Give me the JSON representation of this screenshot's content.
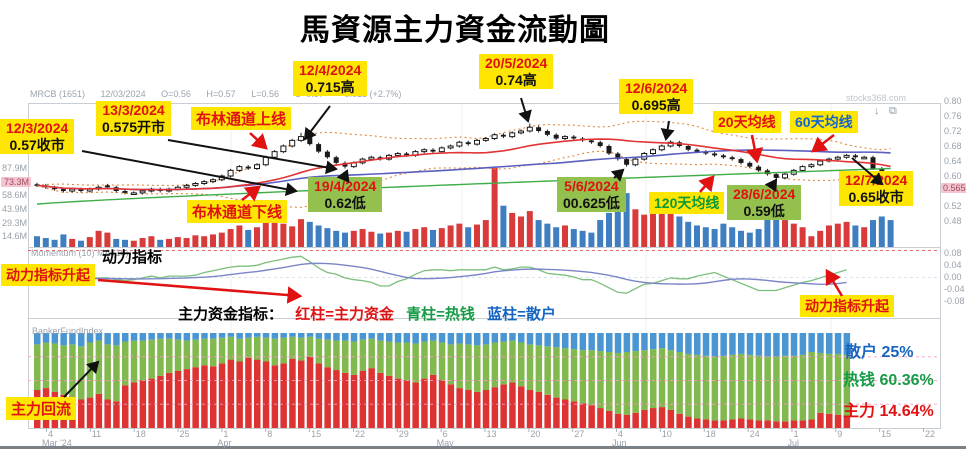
{
  "title": "馬資源主力資金流動圖",
  "watermark": "stocks368.com",
  "toolbar": {
    "download_icon": "↓",
    "expand_icon": "⧉"
  },
  "chart_header": {
    "symbol": "MRCB (1651)",
    "date": "12/03/2024",
    "open": "O=0.56",
    "high": "H=0.57",
    "low": "L=0.56",
    "close": "C=0.57",
    "change": "+0.015 (+2.7%)"
  },
  "panel_labels": {
    "momentum": "Momentum (10) MA (10)",
    "momentum_cn": "动力指标",
    "banker": "BankerFundIndex"
  },
  "price_axis": {
    "ticks": [
      "0.80",
      "0.76",
      "0.72",
      "0.68",
      "0.64",
      "0.60",
      "0.52",
      "0.48"
    ],
    "tag": "0.565"
  },
  "volume_axis": {
    "ticks": [
      "87.9M",
      "73.3M",
      "58.6M",
      "43.9M",
      "29.3M",
      "14.6M"
    ],
    "tag_index": 1
  },
  "momentum_axis": [
    "0.08",
    "0.04",
    "0.00",
    "-0.04",
    "-0.08"
  ],
  "x_axis": [
    {
      "day": "4",
      "month": "Mar '24"
    },
    {
      "day": "11"
    },
    {
      "day": "18"
    },
    {
      "day": "25"
    },
    {
      "day": "1",
      "month": "Apr"
    },
    {
      "day": "8"
    },
    {
      "day": "15"
    },
    {
      "day": "22"
    },
    {
      "day": "29"
    },
    {
      "day": "6",
      "month": "May"
    },
    {
      "day": "13"
    },
    {
      "day": "20"
    },
    {
      "day": "27"
    },
    {
      "day": "4",
      "month": "Jun"
    },
    {
      "day": "10"
    },
    {
      "day": "18"
    },
    {
      "day": "24"
    },
    {
      "day": "1",
      "month": "Jul"
    },
    {
      "day": "9"
    },
    {
      "day": "15"
    },
    {
      "day": "22"
    }
  ],
  "annotations": {
    "a12_3": {
      "date": "12/3/2024",
      "value": "0.57收市"
    },
    "a13_3": {
      "date": "13/3/2024",
      "value": "0.575开市"
    },
    "bb_upper": {
      "label": "布林通道上线"
    },
    "a12_4": {
      "date": "12/4/2024",
      "value": "0.715高"
    },
    "a20_5": {
      "date": "20/5/2024",
      "value": "0.74高"
    },
    "a12_6": {
      "date": "12/6/2024",
      "value": "0.695高"
    },
    "ma20": {
      "label": "20天均线"
    },
    "ma60": {
      "label": "60天均线"
    },
    "a19_4": {
      "date": "19/4/2024",
      "value": "0.62低"
    },
    "bb_lower": {
      "label": "布林通道下线"
    },
    "a5_6": {
      "date": "5/6/2024",
      "value": "00.625低"
    },
    "ma120": {
      "label": "120天均线"
    },
    "a28_6": {
      "date": "28/6/2024",
      "value": "0.59低"
    },
    "a12_7": {
      "date": "12/7/2024",
      "value": "0.65收市"
    },
    "mom_rise_left": {
      "label": "动力指标升起"
    },
    "mom_rise_right": {
      "label": "动力指标升起"
    },
    "main_return": {
      "label": "主力回流"
    }
  },
  "legend": {
    "prefix": "主力资金指标：",
    "red": "红柱=主力资金",
    "green": "青柱=热钱",
    "blue": "蓝柱=散户"
  },
  "banker_summary": {
    "retail": "散户 25%",
    "hot": "热钱 60.36%",
    "main": "主力 14.64%"
  },
  "colors": {
    "annotation_yellow": "#ffe600",
    "annotation_green": "#94c04e",
    "annotation_red_text": "#e01212",
    "ma20": "#e23434",
    "ma60": "#5a5fc0",
    "ma120": "#3fae49",
    "bollinger": "#e0883c",
    "candle": "#1a1a1a",
    "volume_up": "#d93a3a",
    "volume_down": "#3f7fc1",
    "banker_main": "#dd3333",
    "banker_hot": "#82b94e",
    "banker_retail": "#4a96d2",
    "momentum_fast": "#7cbf7c",
    "momentum_slow": "#7b86c8",
    "summary_retail": "#1565c0",
    "summary_hot": "#169c46",
    "summary_main": "#e01212",
    "pink_grid": "#f2a0c0",
    "frame": "#c8ced4"
  },
  "chart_data": {
    "type": [
      "candlestick",
      "bar",
      "line",
      "stacked_bar"
    ],
    "symbol": "MRCB (1651)",
    "date_range": "Mar 2024 - Jul 2024",
    "price_axis_range": [
      0.48,
      0.8
    ],
    "volume_axis_max_m": 87.9,
    "momentum_axis_range": [
      -0.08,
      0.08
    ],
    "momentum_period": 10,
    "closes": [
      0.575,
      0.57,
      0.565,
      0.56,
      0.565,
      0.56,
      0.565,
      0.57,
      0.57,
      0.56,
      0.555,
      0.555,
      0.56,
      0.565,
      0.56,
      0.565,
      0.57,
      0.575,
      0.58,
      0.585,
      0.59,
      0.6,
      0.615,
      0.625,
      0.62,
      0.63,
      0.65,
      0.665,
      0.68,
      0.695,
      0.705,
      0.685,
      0.665,
      0.65,
      0.635,
      0.625,
      0.635,
      0.645,
      0.65,
      0.645,
      0.655,
      0.66,
      0.655,
      0.665,
      0.67,
      0.665,
      0.675,
      0.68,
      0.69,
      0.685,
      0.695,
      0.7,
      0.71,
      0.705,
      0.715,
      0.72,
      0.73,
      0.72,
      0.71,
      0.7,
      0.705,
      0.7,
      0.695,
      0.69,
      0.68,
      0.66,
      0.645,
      0.63,
      0.645,
      0.66,
      0.67,
      0.68,
      0.69,
      0.68,
      0.67,
      0.665,
      0.66,
      0.655,
      0.65,
      0.645,
      0.635,
      0.625,
      0.615,
      0.605,
      0.595,
      0.605,
      0.615,
      0.625,
      0.63,
      0.64,
      0.645,
      0.65,
      0.655,
      0.65,
      0.65,
      0.62,
      0.59,
      0.565
    ],
    "marked_candles": {
      "8": {
        "o": 0.575
      },
      "30": {
        "h": 0.715
      },
      "35": {
        "l": 0.62
      },
      "56": {
        "h": 0.74
      },
      "67": {
        "l": 0.625
      },
      "72": {
        "h": 0.695
      },
      "84": {
        "l": 0.59
      }
    },
    "volumes_m": [
      12,
      10,
      8,
      14,
      9,
      7,
      11,
      18,
      16,
      9,
      8,
      7,
      10,
      12,
      8,
      9,
      11,
      10,
      13,
      12,
      14,
      16,
      20,
      24,
      19,
      22,
      27,
      30,
      26,
      23,
      31,
      28,
      24,
      21,
      18,
      16,
      18,
      20,
      17,
      15,
      16,
      18,
      17,
      20,
      22,
      19,
      21,
      24,
      26,
      22,
      25,
      30,
      88,
      46,
      38,
      34,
      40,
      30,
      26,
      22,
      24,
      20,
      18,
      16,
      30,
      38,
      55,
      60,
      42,
      36,
      48,
      40,
      52,
      34,
      28,
      24,
      22,
      20,
      26,
      22,
      18,
      16,
      20,
      44,
      38,
      30,
      26,
      22,
      12,
      18,
      24,
      26,
      28,
      24,
      22,
      30,
      34,
      30
    ],
    "banker_main_pct": [
      40,
      42,
      38,
      35,
      33,
      30,
      32,
      36,
      30,
      28,
      45,
      48,
      50,
      52,
      55,
      58,
      60,
      62,
      64,
      66,
      65,
      68,
      72,
      70,
      74,
      72,
      70,
      66,
      68,
      73,
      71,
      75,
      68,
      64,
      61,
      58,
      56,
      60,
      63,
      58,
      55,
      52,
      50,
      48,
      52,
      56,
      50,
      46,
      42,
      40,
      38,
      40,
      43,
      46,
      48,
      44,
      40,
      38,
      35,
      32,
      30,
      28,
      26,
      24,
      21,
      18,
      15,
      14,
      16,
      19,
      21,
      22,
      19,
      15,
      12,
      10,
      9,
      8,
      8,
      9,
      10,
      9,
      8,
      8,
      7,
      7,
      8,
      8,
      9,
      16,
      15,
      14,
      13,
      12,
      6,
      9,
      13,
      15
    ],
    "banker_retail_pct": [
      12,
      10,
      11,
      13,
      12,
      14,
      10,
      8,
      12,
      13,
      9,
      8,
      8,
      7,
      6,
      6,
      7,
      8,
      7,
      6,
      6,
      5,
      4,
      6,
      5,
      4,
      5,
      6,
      5,
      4,
      5,
      4,
      6,
      7,
      8,
      8,
      9,
      7,
      6,
      8,
      9,
      10,
      10,
      11,
      9,
      8,
      10,
      12,
      11,
      12,
      13,
      12,
      10,
      9,
      8,
      10,
      12,
      13,
      14,
      15,
      16,
      17,
      18,
      18,
      19,
      20,
      21,
      20,
      19,
      18,
      17,
      16,
      18,
      20,
      22,
      23,
      24,
      25,
      24,
      23,
      22,
      23,
      24,
      25,
      25,
      24,
      24,
      23,
      20,
      21,
      22,
      22,
      23,
      26,
      25,
      24,
      25,
      25
    ],
    "key_points": [
      {
        "date": "12/3/2024",
        "event": "0.57 收市"
      },
      {
        "date": "13/3/2024",
        "event": "0.575 开市"
      },
      {
        "date": "12/4/2024",
        "event": "0.715 高"
      },
      {
        "date": "19/4/2024",
        "event": "0.62 低"
      },
      {
        "date": "20/5/2024",
        "event": "0.74 高"
      },
      {
        "date": "5/6/2024",
        "event": "0.625 低"
      },
      {
        "date": "12/6/2024",
        "event": "0.695 高"
      },
      {
        "date": "28/6/2024",
        "event": "0.59 低"
      },
      {
        "date": "12/7/2024",
        "event": "0.65 收市"
      }
    ],
    "banker_summary": {
      "main_pct": 14.64,
      "hot_pct": 60.36,
      "retail_pct": 25
    }
  }
}
